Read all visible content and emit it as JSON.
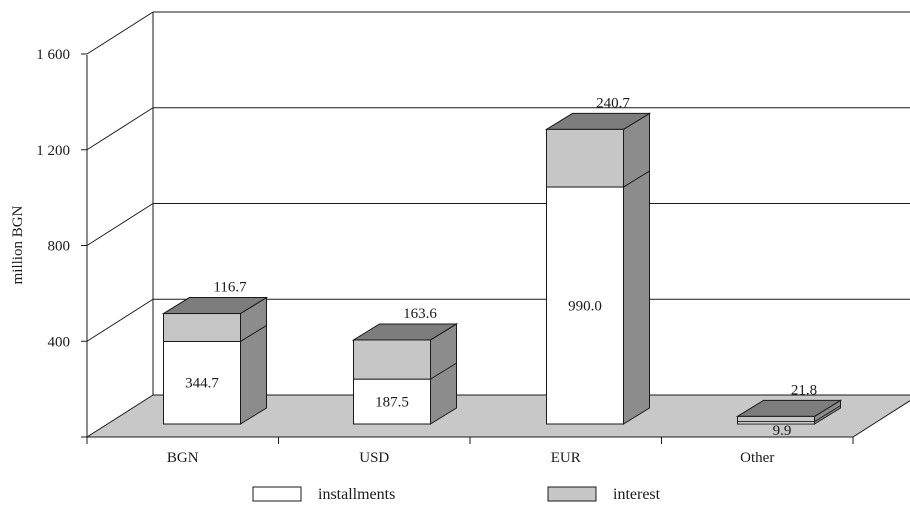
{
  "chart_data": {
    "type": "bar",
    "stacked": true,
    "three_d": true,
    "title": "",
    "xlabel": "",
    "ylabel": "million BGN",
    "ylim": [
      0,
      1600
    ],
    "yticks": [
      400,
      800,
      1200,
      1600
    ],
    "ytick_labels": [
      "400",
      "800",
      "1 200",
      "1 600"
    ],
    "grid": true,
    "legend_position": "bottom",
    "categories": [
      "BGN",
      "USD",
      "EUR",
      "Other"
    ],
    "series": [
      {
        "name": "installments",
        "values": [
          344.7,
          187.5,
          990.0,
          9.9
        ],
        "labels": [
          "344.7",
          "187.5",
          "990.0",
          "9.9"
        ],
        "color": "#ffffff"
      },
      {
        "name": "interest",
        "values": [
          116.7,
          163.6,
          240.7,
          21.8
        ],
        "labels": [
          "116.7",
          "163.6",
          "240.7",
          "21.8"
        ],
        "color": "#c6c6c6"
      }
    ],
    "colors": {
      "floor": "#c8c8c8",
      "side": "#8c8c8c",
      "top": "#7d7d7d",
      "outline": "#1a1a1a"
    }
  }
}
